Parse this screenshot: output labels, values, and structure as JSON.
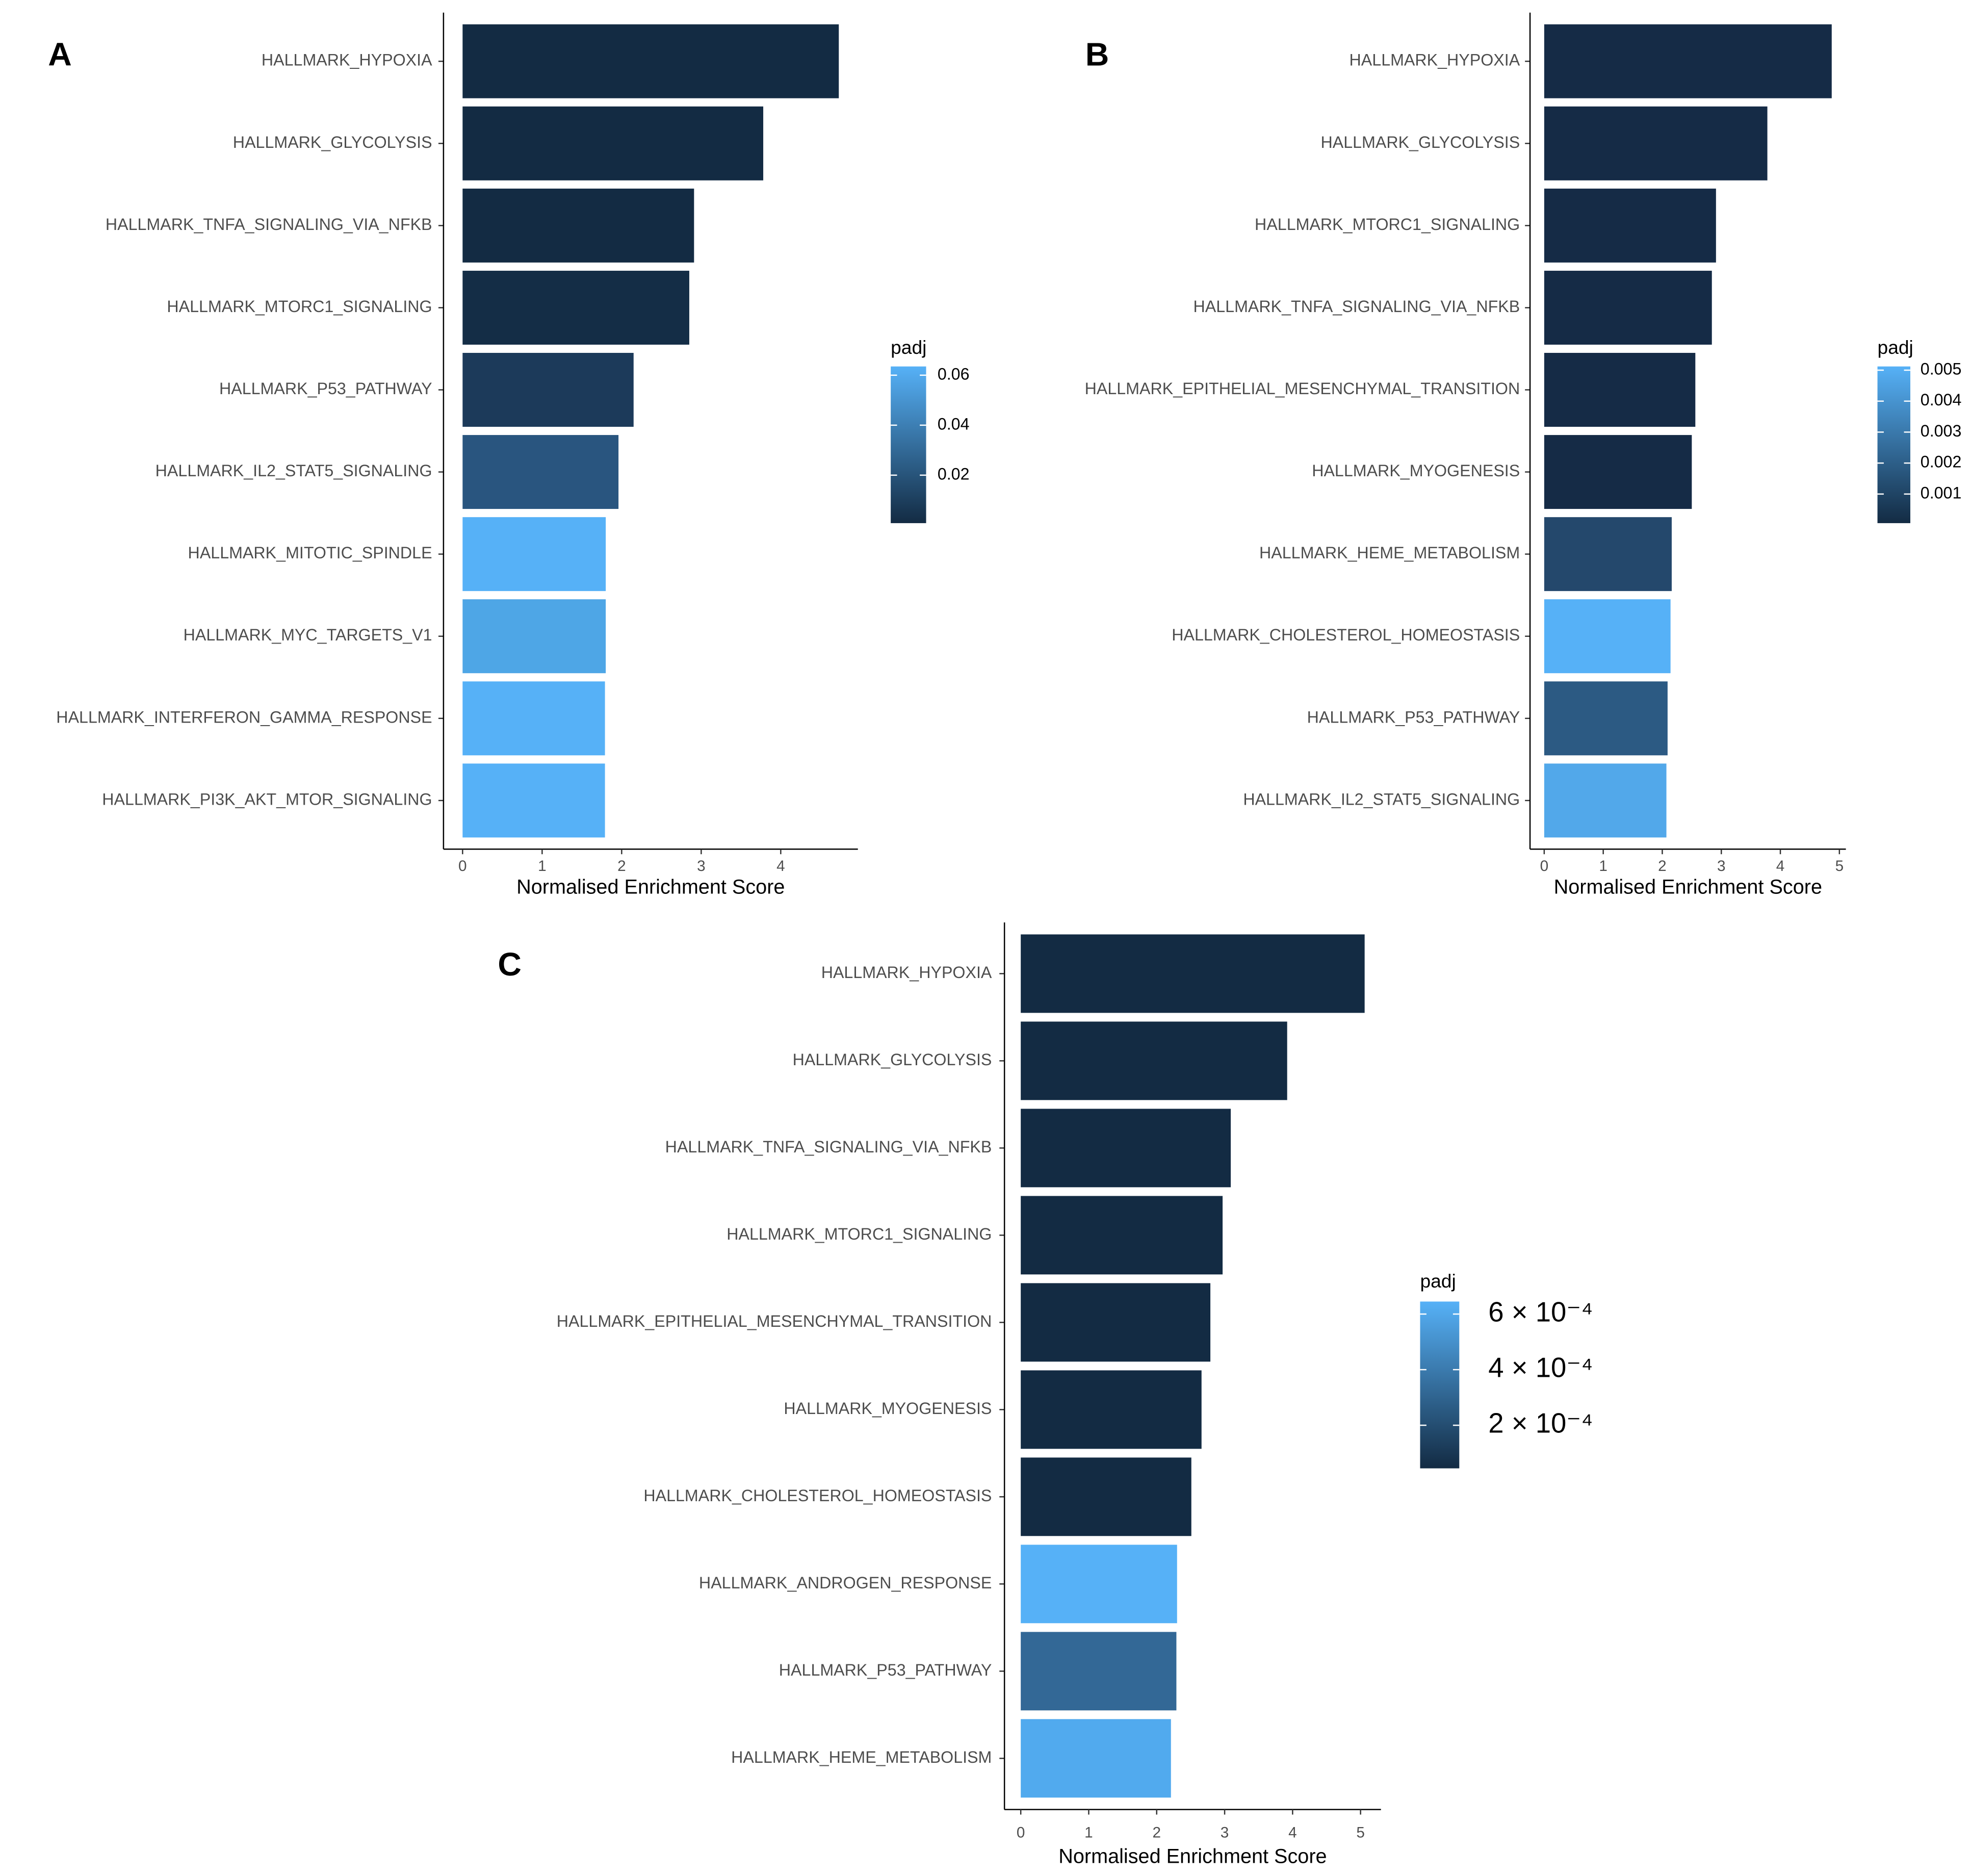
{
  "chart_data": [
    {
      "type": "bar",
      "panel": "A",
      "categories": [
        "HALLMARK_HYPOXIA",
        "HALLMARK_GLYCOLYSIS",
        "HALLMARK_TNFA_SIGNALING_VIA_NFKB",
        "HALLMARK_MTORC1_SIGNALING",
        "HALLMARK_P53_PATHWAY",
        "HALLMARK_IL2_STAT5_SIGNALING",
        "HALLMARK_MITOTIC_SPINDLE",
        "HALLMARK_MYC_TARGETS_V1",
        "HALLMARK_INTERFERON_GAMMA_RESPONSE",
        "HALLMARK_PI3K_AKT_MTOR_SIGNALING"
      ],
      "values": [
        4.73,
        3.78,
        2.91,
        2.85,
        2.15,
        1.96,
        1.8,
        1.8,
        1.79,
        1.79
      ],
      "colors": [
        "#132b43",
        "#132b43",
        "#132b43",
        "#142d46",
        "#1c3a5a",
        "#29557f",
        "#56b1f7",
        "#4ea6e6",
        "#56b1f7",
        "#56b1f7"
      ],
      "x_label": "Normalised Enrichment Score",
      "xlim": [
        -0.24,
        4.97
      ],
      "xticks": [
        0,
        1,
        2,
        3,
        4
      ],
      "legend": {
        "title": "padj",
        "colors": [
          "#132b43",
          "#56b1f7"
        ],
        "lim": [
          0.0008,
          0.0635
        ],
        "ticks": [
          0.02,
          0.04,
          0.06
        ]
      }
    },
    {
      "type": "bar",
      "panel": "B",
      "categories": [
        "HALLMARK_HYPOXIA",
        "HALLMARK_GLYCOLYSIS",
        "HALLMARK_MTORC1_SIGNALING",
        "HALLMARK_TNFA_SIGNALING_VIA_NFKB",
        "HALLMARK_EPITHELIAL_MESENCHYMAL_TRANSITION",
        "HALLMARK_MYOGENESIS",
        "HALLMARK_HEME_METABOLISM",
        "HALLMARK_CHOLESTEROL_HOMEOSTASIS",
        "HALLMARK_P53_PATHWAY",
        "HALLMARK_IL2_STAT5_SIGNALING"
      ],
      "values": [
        4.87,
        3.78,
        2.91,
        2.84,
        2.56,
        2.5,
        2.16,
        2.14,
        2.09,
        2.07
      ],
      "colors": [
        "#152b46",
        "#152b46",
        "#152b46",
        "#152b46",
        "#152b46",
        "#152b46",
        "#24486c",
        "#56b1f7",
        "#2c5a83",
        "#52a8ea"
      ],
      "x_label": "Normalised Enrichment Score",
      "xlim": [
        -0.24,
        5.11
      ],
      "xticks": [
        0,
        1,
        2,
        3,
        4,
        5
      ],
      "legend": {
        "title": "padj",
        "colors": [
          "#132b43",
          "#56b1f7"
        ],
        "lim": [
          6e-05,
          0.00512
        ],
        "ticks": [
          0.001,
          0.002,
          0.003,
          0.004,
          0.005
        ]
      }
    },
    {
      "type": "bar",
      "panel": "C",
      "categories": [
        "HALLMARK_HYPOXIA",
        "HALLMARK_GLYCOLYSIS",
        "HALLMARK_TNFA_SIGNALING_VIA_NFKB",
        "HALLMARK_MTORC1_SIGNALING",
        "HALLMARK_EPITHELIAL_MESENCHYMAL_TRANSITION",
        "HALLMARK_MYOGENESIS",
        "HALLMARK_CHOLESTEROL_HOMEOSTASIS",
        "HALLMARK_ANDROGEN_RESPONSE",
        "HALLMARK_P53_PATHWAY",
        "HALLMARK_HEME_METABOLISM"
      ],
      "values": [
        5.06,
        3.92,
        3.09,
        2.97,
        2.79,
        2.66,
        2.51,
        2.3,
        2.29,
        2.21
      ],
      "colors": [
        "#132b43",
        "#132b43",
        "#132b43",
        "#132b43",
        "#132b43",
        "#132b43",
        "#132b43",
        "#56b1f7",
        "#336896",
        "#51aaee"
      ],
      "x_label": "Normalised Enrichment Score",
      "xlim": [
        -0.24,
        5.3
      ],
      "xticks": [
        0,
        1,
        2,
        3,
        4,
        5
      ],
      "legend": {
        "title": "padj",
        "colors": [
          "#132b43",
          "#56b1f7"
        ],
        "lim": [
          4.5e-05,
          0.000645
        ],
        "ticks": [
          {
            "value": 0.0002,
            "label": "2 × 10⁻⁴"
          },
          {
            "value": 0.0004,
            "label": "4 × 10⁻⁴"
          },
          {
            "value": 0.0006,
            "label": "6 × 10⁻⁴"
          }
        ]
      }
    }
  ]
}
